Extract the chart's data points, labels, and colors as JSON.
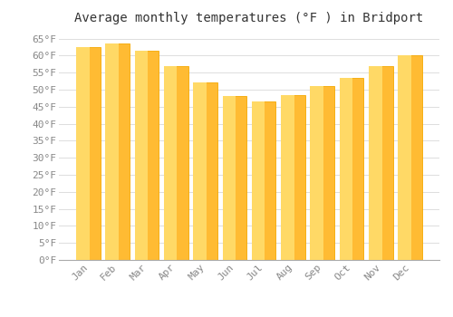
{
  "title": "Average monthly temperatures (°F ) in Bridport",
  "months": [
    "Jan",
    "Feb",
    "Mar",
    "Apr",
    "May",
    "Jun",
    "Jul",
    "Aug",
    "Sep",
    "Oct",
    "Nov",
    "Dec"
  ],
  "values": [
    62.5,
    63.5,
    61.5,
    57.0,
    52.0,
    48.0,
    46.5,
    48.5,
    51.0,
    53.5,
    57.0,
    60.0
  ],
  "bar_color_face": "#FFBB33",
  "bar_color_edge": "#F5A800",
  "background_color": "#FFFFFF",
  "grid_color": "#DDDDDD",
  "ylim": [
    0,
    67
  ],
  "yticks": [
    0,
    5,
    10,
    15,
    20,
    25,
    30,
    35,
    40,
    45,
    50,
    55,
    60,
    65
  ],
  "title_fontsize": 10,
  "tick_fontsize": 8,
  "tick_color": "#888888"
}
